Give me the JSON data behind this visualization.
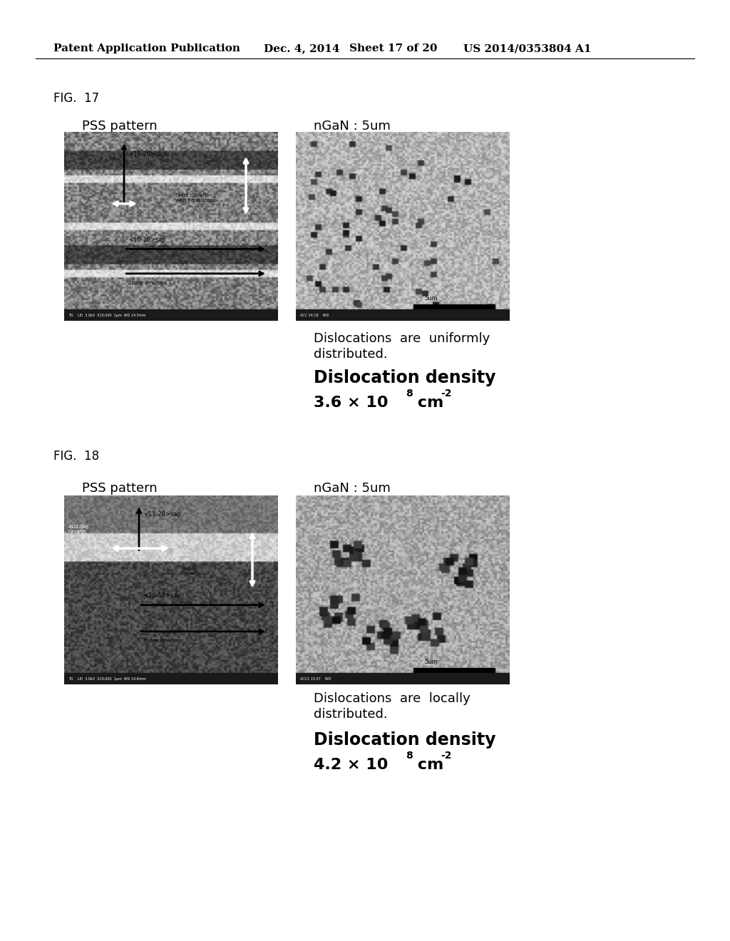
{
  "background_color": "#ffffff",
  "header_text": "Patent Application Publication",
  "header_date": "Dec. 4, 2014",
  "header_sheet": "Sheet 17 of 20",
  "header_patent": "US 2014/0353804 A1",
  "fig17_label": "FIG.  17",
  "fig18_label": "FIG.  18",
  "pss_label": "PSS pattern",
  "ngan_label": "nGaN : 5um",
  "fig17_desc1": "Dislocations  are  uniformly",
  "fig17_desc2": "distributed.",
  "fig17_density_label": "Dislocation density",
  "fig17_density_value": "3.6 × 10",
  "fig17_density_exp": "8",
  "fig17_density_unit": " cm",
  "fig17_density_unit_exp": "-2",
  "fig18_desc1": "Dislocations  are  locally",
  "fig18_desc2": "distributed.",
  "fig18_density_label": "Dislocation density",
  "fig18_density_value": "4.2 × 10",
  "fig18_density_exp": "8",
  "fig18_density_unit": " cm",
  "fig18_density_unit_exp": "-2",
  "font_color": "#000000",
  "header_font_size": 11,
  "fig_label_font_size": 12,
  "pss_ngan_font_size": 13,
  "desc_font_size": 13,
  "density_label_font_size": 17,
  "density_value_font_size": 16
}
